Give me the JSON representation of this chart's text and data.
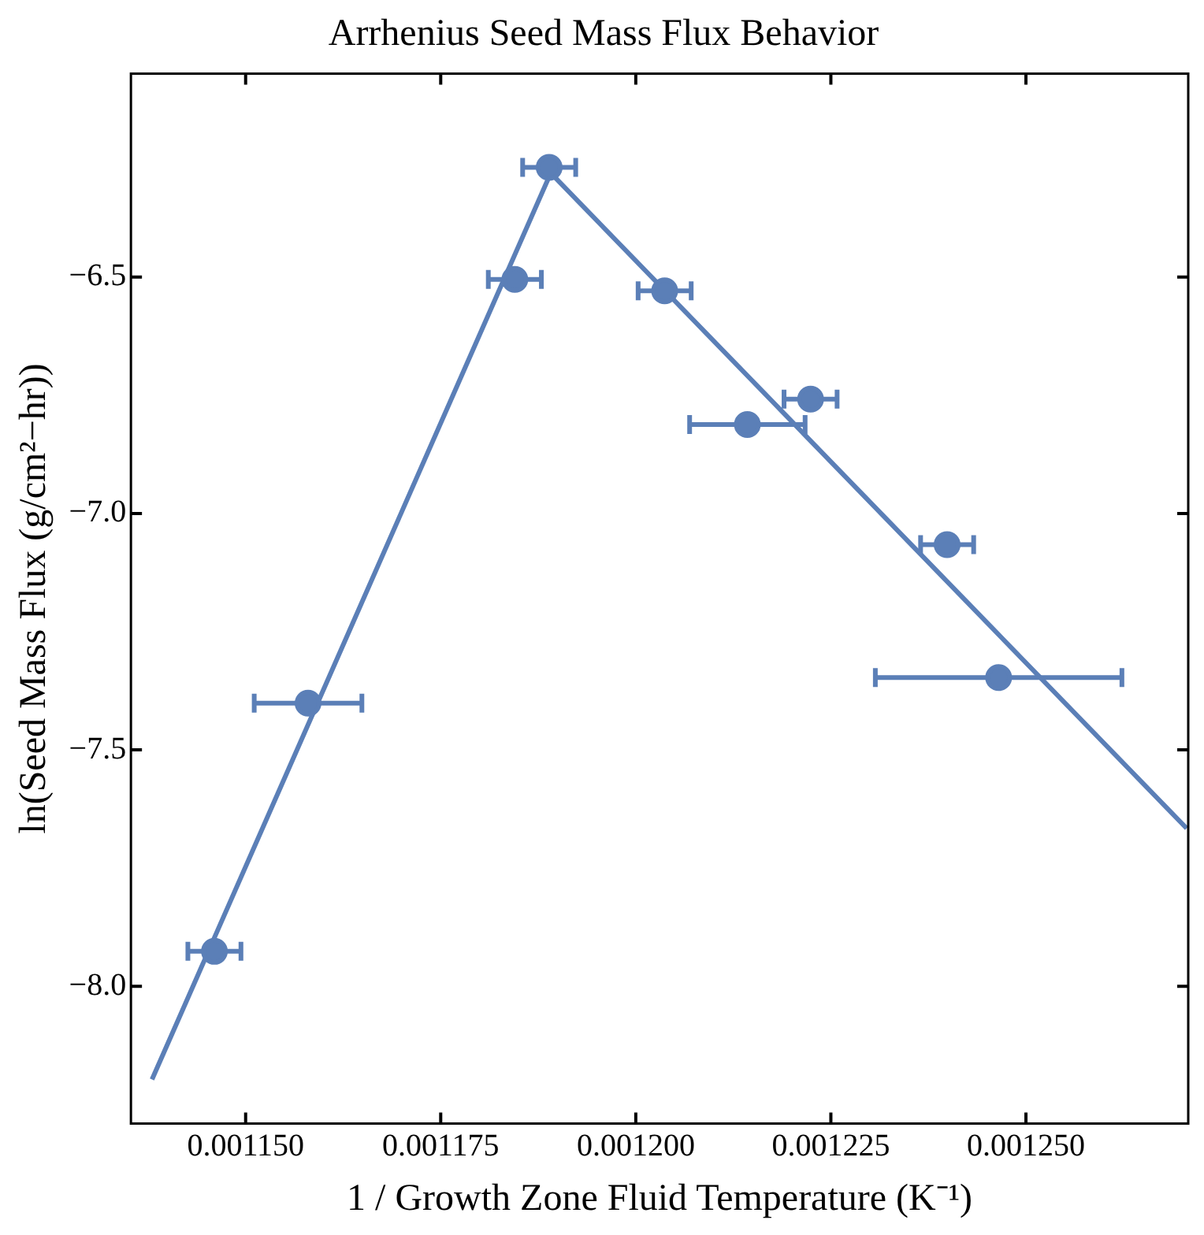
{
  "chart_data": {
    "type": "scatter",
    "title": "Arrhenius Seed Mass Flux Behavior",
    "xlabel": "1 / Growth Zone Fluid Temperature (K⁻¹)",
    "ylabel": "ln(Seed Mass Flux (g/cm²−hr))",
    "xlim": [
      0.0011353,
      0.0012708
    ],
    "ylim": [
      -8.29,
      -6.07
    ],
    "xticks": [
      {
        "value": 0.00115,
        "label": "0.001150"
      },
      {
        "value": 0.001175,
        "label": "0.001175"
      },
      {
        "value": 0.0012,
        "label": "0.001200"
      },
      {
        "value": 0.001225,
        "label": "0.001225"
      },
      {
        "value": 0.00125,
        "label": "0.001250"
      }
    ],
    "yticks": [
      {
        "value": -8.0,
        "label": "−8.0"
      },
      {
        "value": -7.5,
        "label": "−7.5"
      },
      {
        "value": -7.0,
        "label": "−7.0"
      },
      {
        "value": -6.5,
        "label": "−6.5"
      }
    ],
    "grid": false,
    "legend": false,
    "marker": "circle",
    "series": [
      {
        "type": "scatter",
        "color": "#5b7fb7",
        "x": [
          0.001146,
          0.001158,
          0.0011845,
          0.0011889,
          0.0012037,
          0.0012143,
          0.0012224,
          0.0012399,
          0.0012465
        ],
        "values": [
          -7.926,
          -7.401,
          -6.505,
          -6.268,
          -6.529,
          -6.812,
          -6.758,
          -7.066,
          -7.347
        ],
        "xerrors": [
          3.4e-06,
          6.9e-06,
          3.4e-06,
          3.4e-06,
          3.4e-06,
          7.4e-06,
          3.4e-06,
          3.4e-06,
          1.58e-05
        ]
      },
      {
        "type": "line",
        "color": "#5b7fb7",
        "marker": "none",
        "line_style": "solid",
        "x": [
          0.001138,
          0.0011891,
          0.0012706
        ],
        "values": [
          -8.197,
          -6.28,
          -7.666
        ]
      }
    ]
  }
}
